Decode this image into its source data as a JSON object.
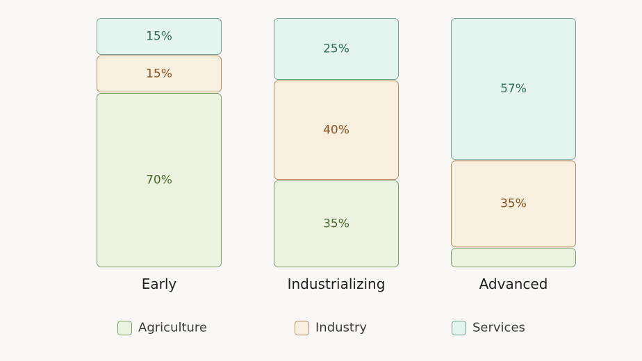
{
  "chart_data": {
    "type": "bar",
    "stacked": true,
    "categories": [
      "Early",
      "Industrializing",
      "Advanced"
    ],
    "series": [
      {
        "name": "Agriculture",
        "values": [
          70,
          35,
          8
        ],
        "labels": [
          "70%",
          "35%",
          ""
        ],
        "fill": "#ebf3e0",
        "stroke": "#7a9a62",
        "text_color": "#4a6b2a"
      },
      {
        "name": "Industry",
        "values": [
          15,
          40,
          35
        ],
        "labels": [
          "15%",
          "40%",
          "35%"
        ],
        "fill": "#f8efdf",
        "stroke": "#b88a5c",
        "text_color": "#8a5322"
      },
      {
        "name": "Services",
        "values": [
          15,
          25,
          57
        ],
        "labels": [
          "15%",
          "25%",
          "57%"
        ],
        "fill": "#e4f5ef",
        "stroke": "#6f9e8f",
        "text_color": "#2d6b5a"
      }
    ],
    "ylim": [
      0,
      100
    ],
    "legend_position": "bottom",
    "grid": false
  }
}
